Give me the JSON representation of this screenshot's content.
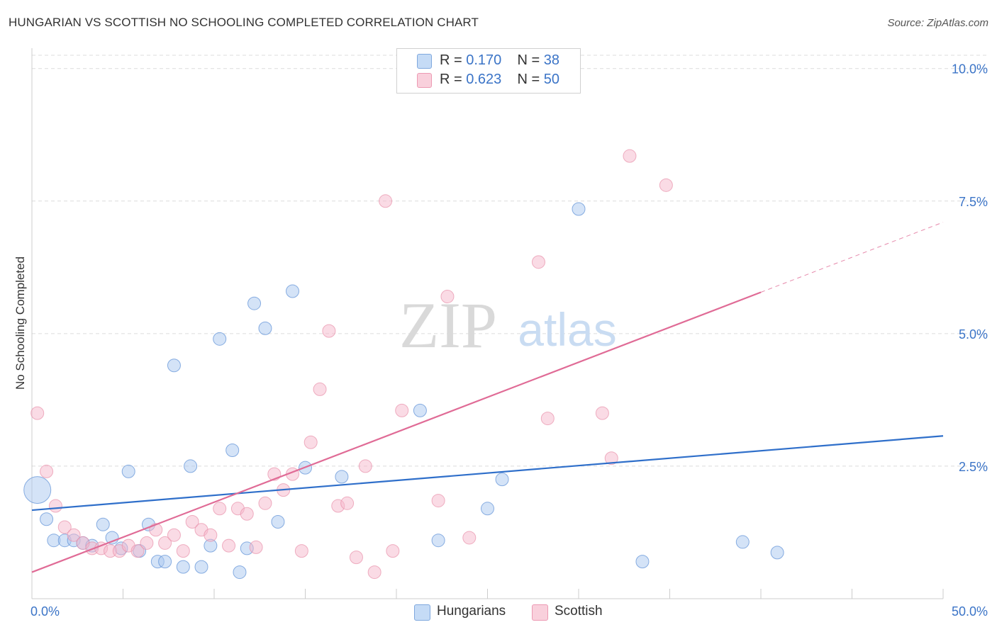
{
  "title": "HUNGARIAN VS SCOTTISH NO SCHOOLING COMPLETED CORRELATION CHART",
  "source": "Source: ZipAtlas.com",
  "watermark": {
    "zip": "ZIP",
    "atlas": "atlas"
  },
  "legend": {
    "rows": [
      {
        "r_label": "R =",
        "r_value": "0.170",
        "n_label": "N =",
        "n_value": "38",
        "color": "#a9c8f0"
      },
      {
        "r_label": "R =",
        "r_value": "0.623",
        "n_label": "N =",
        "n_value": "50",
        "color": "#f6b8cb"
      }
    ]
  },
  "chart_data": {
    "type": "scatter",
    "title": "HUNGARIAN VS SCOTTISH NO SCHOOLING COMPLETED CORRELATION CHART",
    "xlabel": "",
    "ylabel": "No Schooling Completed",
    "xlim": [
      0,
      50
    ],
    "ylim": [
      0,
      10.25
    ],
    "x_tick_labels": [
      "0.0%",
      "50.0%"
    ],
    "y_ticks": [
      2.5,
      5.0,
      7.5,
      10.0
    ],
    "y_tick_labels": [
      "2.5%",
      "5.0%",
      "7.5%",
      "10.0%"
    ],
    "grid": true,
    "series": [
      {
        "name": "Hungarians",
        "color": "#5b8fd6",
        "fill": "#a9c8f0",
        "trend_color": "#2f6fca",
        "trend": {
          "x0": 0,
          "y0": 1.67,
          "x1": 50,
          "y1": 3.07
        },
        "points": [
          {
            "x": 0.3,
            "y": 2.05,
            "big": true
          },
          {
            "x": 0.8,
            "y": 1.5
          },
          {
            "x": 1.2,
            "y": 1.1
          },
          {
            "x": 1.8,
            "y": 1.1
          },
          {
            "x": 2.3,
            "y": 1.1
          },
          {
            "x": 2.8,
            "y": 1.05
          },
          {
            "x": 3.3,
            "y": 1.0
          },
          {
            "x": 3.9,
            "y": 1.4
          },
          {
            "x": 4.4,
            "y": 1.15
          },
          {
            "x": 4.9,
            "y": 0.95
          },
          {
            "x": 5.3,
            "y": 2.4
          },
          {
            "x": 5.9,
            "y": 0.9
          },
          {
            "x": 6.4,
            "y": 1.4
          },
          {
            "x": 6.9,
            "y": 0.7
          },
          {
            "x": 7.3,
            "y": 0.7
          },
          {
            "x": 7.8,
            "y": 4.4
          },
          {
            "x": 8.3,
            "y": 0.6
          },
          {
            "x": 8.7,
            "y": 2.5
          },
          {
            "x": 9.3,
            "y": 0.6
          },
          {
            "x": 9.8,
            "y": 1.0
          },
          {
            "x": 10.3,
            "y": 4.9
          },
          {
            "x": 11.0,
            "y": 2.8
          },
          {
            "x": 11.4,
            "y": 0.5
          },
          {
            "x": 11.8,
            "y": 0.95
          },
          {
            "x": 12.2,
            "y": 5.57
          },
          {
            "x": 12.8,
            "y": 5.1
          },
          {
            "x": 13.5,
            "y": 1.45
          },
          {
            "x": 14.3,
            "y": 5.8
          },
          {
            "x": 15.0,
            "y": 2.47
          },
          {
            "x": 17.0,
            "y": 2.3
          },
          {
            "x": 21.3,
            "y": 3.55
          },
          {
            "x": 22.3,
            "y": 1.1
          },
          {
            "x": 25.0,
            "y": 1.7
          },
          {
            "x": 25.8,
            "y": 2.25
          },
          {
            "x": 30.0,
            "y": 7.35
          },
          {
            "x": 33.5,
            "y": 0.7
          },
          {
            "x": 39.0,
            "y": 1.07
          },
          {
            "x": 40.9,
            "y": 0.87
          }
        ]
      },
      {
        "name": "Scottish",
        "color": "#e890aa",
        "fill": "#f6b8cb",
        "trend_color": "#e06b96",
        "trend": {
          "x0": 0,
          "y0": 0.5,
          "x1": 40,
          "y1": 5.78
        },
        "trend_extension": {
          "x0": 40,
          "y0": 5.78,
          "x1": 50,
          "y1": 7.1
        },
        "points": [
          {
            "x": 0.3,
            "y": 3.5
          },
          {
            "x": 0.8,
            "y": 2.4
          },
          {
            "x": 1.3,
            "y": 1.75
          },
          {
            "x": 1.8,
            "y": 1.35
          },
          {
            "x": 2.3,
            "y": 1.2
          },
          {
            "x": 2.8,
            "y": 1.05
          },
          {
            "x": 3.3,
            "y": 0.95
          },
          {
            "x": 3.8,
            "y": 0.95
          },
          {
            "x": 4.3,
            "y": 0.9
          },
          {
            "x": 4.8,
            "y": 0.9
          },
          {
            "x": 5.3,
            "y": 1.0
          },
          {
            "x": 5.8,
            "y": 0.9
          },
          {
            "x": 6.3,
            "y": 1.05
          },
          {
            "x": 6.8,
            "y": 1.3
          },
          {
            "x": 7.3,
            "y": 1.05
          },
          {
            "x": 7.8,
            "y": 1.2
          },
          {
            "x": 8.3,
            "y": 0.9
          },
          {
            "x": 8.8,
            "y": 1.45
          },
          {
            "x": 9.3,
            "y": 1.3
          },
          {
            "x": 9.8,
            "y": 1.2
          },
          {
            "x": 10.3,
            "y": 1.7
          },
          {
            "x": 10.8,
            "y": 1.0
          },
          {
            "x": 11.3,
            "y": 1.7
          },
          {
            "x": 11.8,
            "y": 1.6
          },
          {
            "x": 12.3,
            "y": 0.97
          },
          {
            "x": 12.8,
            "y": 1.8
          },
          {
            "x": 13.3,
            "y": 2.35
          },
          {
            "x": 13.8,
            "y": 2.05
          },
          {
            "x": 14.3,
            "y": 2.35
          },
          {
            "x": 14.8,
            "y": 0.9
          },
          {
            "x": 15.3,
            "y": 2.95
          },
          {
            "x": 15.8,
            "y": 3.95
          },
          {
            "x": 16.3,
            "y": 5.05
          },
          {
            "x": 16.8,
            "y": 1.75
          },
          {
            "x": 17.3,
            "y": 1.8
          },
          {
            "x": 17.8,
            "y": 0.78
          },
          {
            "x": 18.3,
            "y": 2.5
          },
          {
            "x": 18.8,
            "y": 0.5
          },
          {
            "x": 19.4,
            "y": 7.5
          },
          {
            "x": 19.8,
            "y": 0.9
          },
          {
            "x": 20.3,
            "y": 3.55
          },
          {
            "x": 22.3,
            "y": 1.85
          },
          {
            "x": 22.8,
            "y": 5.7
          },
          {
            "x": 24.0,
            "y": 1.15
          },
          {
            "x": 27.8,
            "y": 6.35
          },
          {
            "x": 28.3,
            "y": 3.4
          },
          {
            "x": 31.3,
            "y": 3.5
          },
          {
            "x": 31.8,
            "y": 2.65
          },
          {
            "x": 32.8,
            "y": 8.35
          },
          {
            "x": 34.8,
            "y": 7.8
          }
        ]
      }
    ]
  }
}
